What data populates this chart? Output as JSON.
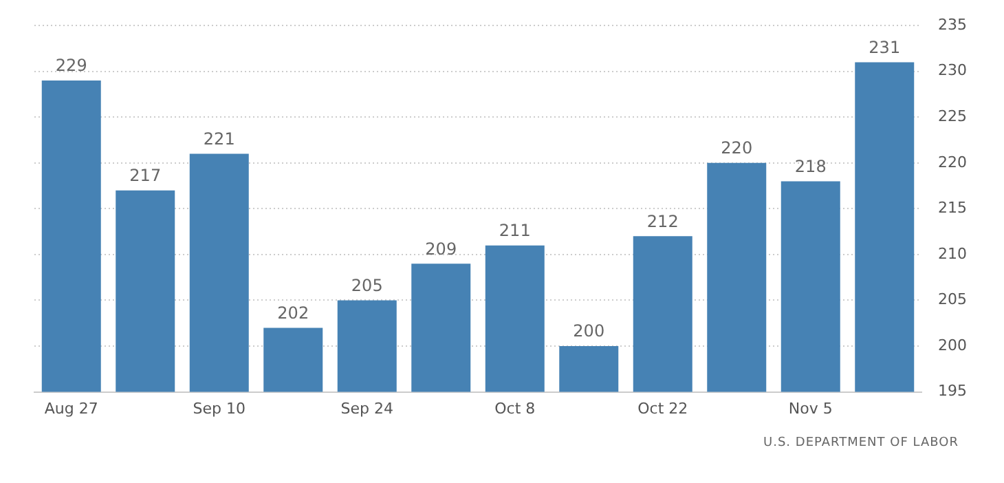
{
  "chart_data": {
    "type": "bar",
    "categories": [
      "Aug 27",
      null,
      "Sep 10",
      null,
      "Sep 24",
      null,
      "Oct 8",
      null,
      "Oct 22",
      null,
      "Nov 5",
      null
    ],
    "values": [
      229,
      217,
      221,
      202,
      205,
      209,
      211,
      200,
      212,
      220,
      218,
      231
    ],
    "color": "#4682b4",
    "ylim": [
      195,
      235
    ],
    "yticks": [
      195,
      200,
      205,
      210,
      215,
      220,
      225,
      230,
      235
    ],
    "grid": "y",
    "data_labels": true,
    "annotations": [
      "U.S. DEPARTMENT OF LABOR"
    ]
  }
}
